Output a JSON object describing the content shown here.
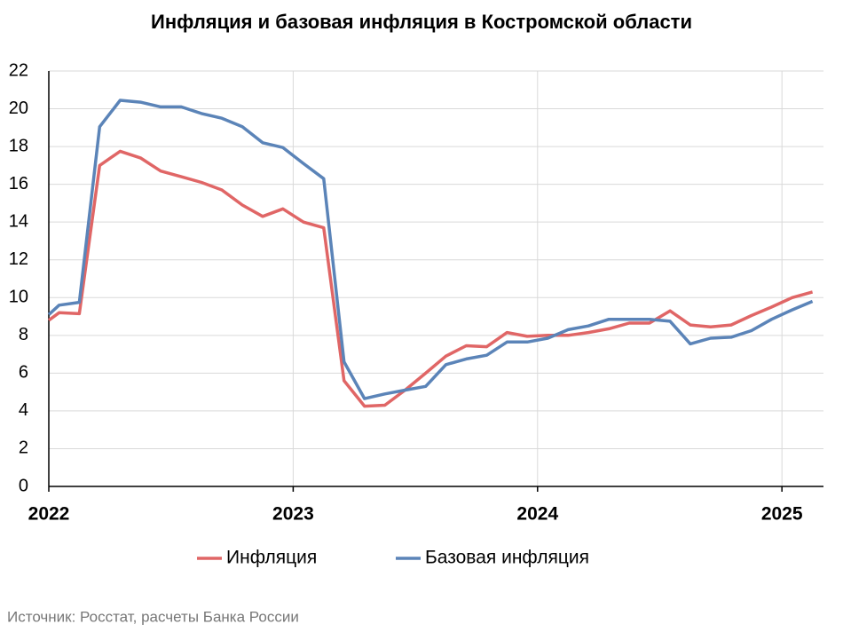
{
  "chart_data": {
    "type": "line",
    "title": "Инфляция и базовая инфляция в Костромской области",
    "source": "Источник: Росстат, расчеты Банка России",
    "x": [
      2022,
      2022.042,
      2022.125,
      2022.208,
      2022.292,
      2022.375,
      2022.458,
      2022.542,
      2022.625,
      2022.708,
      2022.792,
      2022.875,
      2022.958,
      2023.042,
      2023.125,
      2023.208,
      2023.292,
      2023.375,
      2023.458,
      2023.542,
      2023.625,
      2023.708,
      2023.792,
      2023.875,
      2023.958,
      2024.042,
      2024.125,
      2024.208,
      2024.292,
      2024.375,
      2024.458,
      2024.542,
      2024.625,
      2024.708,
      2024.792,
      2024.875,
      2024.958,
      2025.042,
      2025.125
    ],
    "series": [
      {
        "name": "Инфляция",
        "color": "#e06666",
        "values": [
          8.8,
          9.2,
          9.15,
          17.0,
          17.75,
          17.4,
          16.7,
          16.4,
          16.1,
          15.7,
          14.9,
          14.3,
          14.7,
          14.0,
          13.7,
          5.6,
          4.25,
          4.3,
          5.1,
          6.0,
          6.9,
          7.45,
          7.4,
          8.15,
          7.95,
          8.0,
          8.0,
          8.15,
          8.35,
          8.65,
          8.65,
          9.3,
          8.55,
          8.45,
          8.55,
          9.05,
          9.5,
          10.0,
          10.3
        ]
      },
      {
        "name": "Базовая инфляция",
        "color": "#5b84b8",
        "values": [
          9.1,
          9.6,
          9.75,
          19.05,
          20.45,
          20.35,
          20.1,
          20.1,
          19.75,
          19.5,
          19.05,
          18.2,
          17.95,
          17.1,
          16.3,
          6.6,
          4.65,
          4.9,
          5.1,
          5.3,
          6.45,
          6.75,
          6.95,
          7.65,
          7.65,
          7.85,
          8.3,
          8.5,
          8.85,
          8.85,
          8.85,
          8.75,
          7.55,
          7.85,
          7.9,
          8.25,
          8.85,
          9.35,
          9.8
        ]
      }
    ],
    "xlim": [
      2022,
      2025.17
    ],
    "xticks": [
      2022,
      2023,
      2024,
      2025
    ],
    "ylim": [
      0,
      22
    ],
    "yticks": [
      0,
      2,
      4,
      6,
      8,
      10,
      12,
      14,
      16,
      18,
      20,
      22
    ],
    "grid": true,
    "legend": "bottom"
  }
}
